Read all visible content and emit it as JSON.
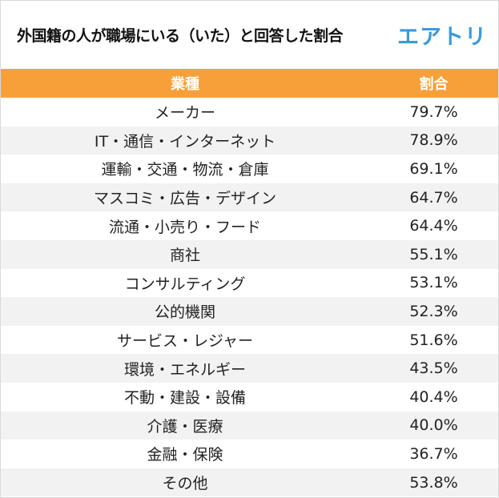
{
  "header": {
    "title": "外国籍の人が職場にいる（いた）と回答した割合",
    "logo": "エアトリ"
  },
  "table": {
    "columns": [
      "業種",
      "割合"
    ],
    "rows": [
      {
        "industry": "メーカー",
        "ratio": "79.7%"
      },
      {
        "industry": "IT・通信・インターネット",
        "ratio": "78.9%"
      },
      {
        "industry": "運輸・交通・物流・倉庫",
        "ratio": "69.1%"
      },
      {
        "industry": "マスコミ・広告・デザイン",
        "ratio": "64.7%"
      },
      {
        "industry": "流通・小売り・フード",
        "ratio": "64.4%"
      },
      {
        "industry": "商社",
        "ratio": "55.1%"
      },
      {
        "industry": "コンサルティング",
        "ratio": "53.1%"
      },
      {
        "industry": "公的機関",
        "ratio": "52.3%"
      },
      {
        "industry": "サービス・レジャー",
        "ratio": "51.6%"
      },
      {
        "industry": "環境・エネルギー",
        "ratio": "43.5%"
      },
      {
        "industry": "不動・建設・設備",
        "ratio": "40.4%"
      },
      {
        "industry": "介護・医療",
        "ratio": "40.0%"
      },
      {
        "industry": "金融・保険",
        "ratio": "36.7%"
      },
      {
        "industry": "その他",
        "ratio": "53.8%"
      }
    ]
  },
  "colors": {
    "header_bg": "#f7a03a",
    "logo": "#3b9ad9",
    "stripe": "#f2f2f2"
  }
}
